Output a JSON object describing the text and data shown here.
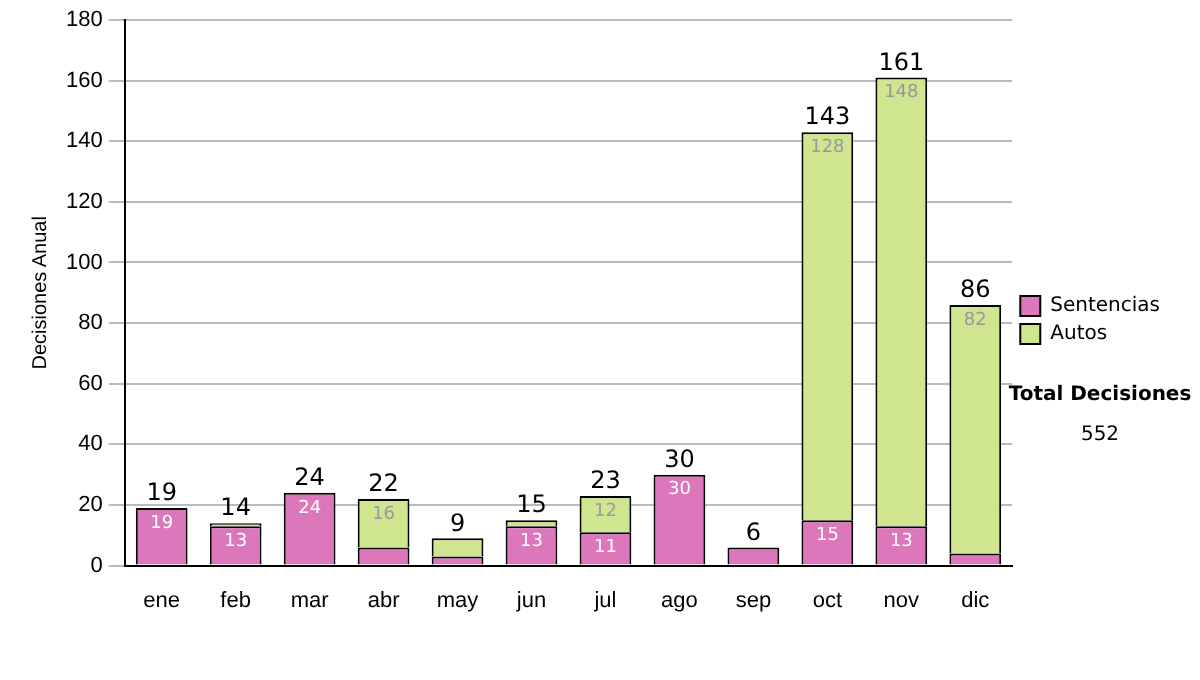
{
  "chart_data": {
    "type": "bar",
    "stacked": true,
    "ylabel": "Decisiones Anual",
    "categories": [
      "ene",
      "feb",
      "mar",
      "abr",
      "may",
      "jun",
      "jul",
      "ago",
      "sep",
      "oct",
      "nov",
      "dic"
    ],
    "series": [
      {
        "name": "Sentencias",
        "color": "#dd77bb",
        "values": [
          19,
          13,
          24,
          6,
          3,
          13,
          11,
          30,
          6,
          15,
          13,
          4
        ],
        "value_labels": [
          "19",
          "13",
          "24",
          null,
          null,
          "13",
          "11",
          "30",
          null,
          "15",
          "13",
          null
        ]
      },
      {
        "name": "Autos",
        "color": "#cfe590",
        "values": [
          0,
          1,
          0,
          16,
          6,
          2,
          12,
          0,
          0,
          128,
          148,
          82
        ],
        "value_labels": [
          null,
          null,
          null,
          "16",
          null,
          null,
          "12",
          null,
          null,
          "128",
          "148",
          "82"
        ]
      }
    ],
    "totals": [
      "19",
      "14",
      "24",
      "22",
      "9",
      "15",
      "23",
      "30",
      "6",
      "143",
      "161",
      "86"
    ],
    "ylim": [
      0,
      180
    ],
    "yticks": [
      0,
      20,
      40,
      60,
      80,
      100,
      120,
      140,
      160,
      180
    ],
    "grid": "y",
    "legend": "right",
    "annotations": [
      "Total Decisiones",
      "552"
    ]
  }
}
